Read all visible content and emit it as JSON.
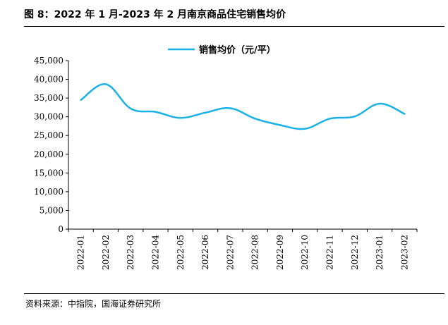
{
  "figure": {
    "title": "图 8：2022 年 1 月-2023 年 2 月南京商品住宅销售均价",
    "source": "资料来源：中指院，国海证券研究所"
  },
  "chart_data": {
    "type": "line",
    "title": "",
    "xlabel": "",
    "ylabel": "",
    "categories": [
      "2022-01",
      "2022-02",
      "2022-03",
      "2022-04",
      "2022-05",
      "2022-06",
      "2022-07",
      "2022-08",
      "2022-09",
      "2022-10",
      "2022-11",
      "2022-12",
      "2023-01",
      "2023-02"
    ],
    "series": [
      {
        "name": "销售均价（元/平）",
        "color": "#19B2E8",
        "values": [
          34500,
          38700,
          32200,
          31300,
          29700,
          31100,
          32300,
          29500,
          27800,
          26800,
          29500,
          30100,
          33500,
          30800
        ]
      }
    ],
    "ylim": [
      0,
      45000
    ],
    "yticks": [
      0,
      5000,
      10000,
      15000,
      20000,
      25000,
      30000,
      35000,
      40000,
      45000
    ],
    "ytick_labels": [
      "0",
      "5,000",
      "10,000",
      "15,000",
      "20,000",
      "25,000",
      "30,000",
      "35,000",
      "40,000",
      "45,000"
    ],
    "grid": false,
    "legend_position": "top-center"
  }
}
